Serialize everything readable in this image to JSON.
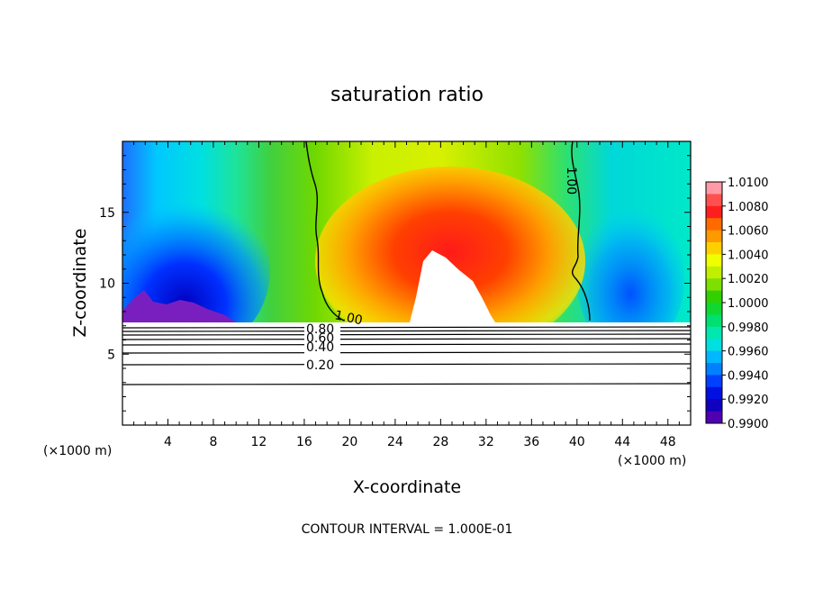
{
  "chart_data": {
    "type": "heatmap",
    "title": "saturation ratio",
    "xlabel": "X-coordinate",
    "ylabel": "Z-coordinate",
    "x_unit": "(×1000 m)",
    "xlim": [
      0,
      50
    ],
    "ylim": [
      0,
      20
    ],
    "x_ticks": [
      "4",
      "8",
      "12",
      "16",
      "20",
      "24",
      "28",
      "32",
      "36",
      "40",
      "44",
      "48"
    ],
    "y_ticks": [
      "5",
      "10",
      "15"
    ],
    "footer": "CONTOUR INTERVAL = 1.000E-01",
    "colorbar": {
      "levels": [
        "1.0100",
        "1.0080",
        "1.0060",
        "1.0040",
        "1.0020",
        "1.0000",
        "0.9980",
        "0.9960",
        "0.9940",
        "0.9920",
        "0.9900"
      ]
    },
    "contour_labels": [
      "1.00",
      "1.00",
      "0.80",
      "0.60",
      "0.40",
      "0.20"
    ],
    "colors": {
      "purple": "#6a0dad",
      "blue": "#0000ff",
      "cyan": "#00e5ff",
      "green": "#33cc00",
      "yellow": "#ffff00",
      "orange": "#ff8c00",
      "red": "#ff0000",
      "pink": "#ff8c9c"
    }
  }
}
